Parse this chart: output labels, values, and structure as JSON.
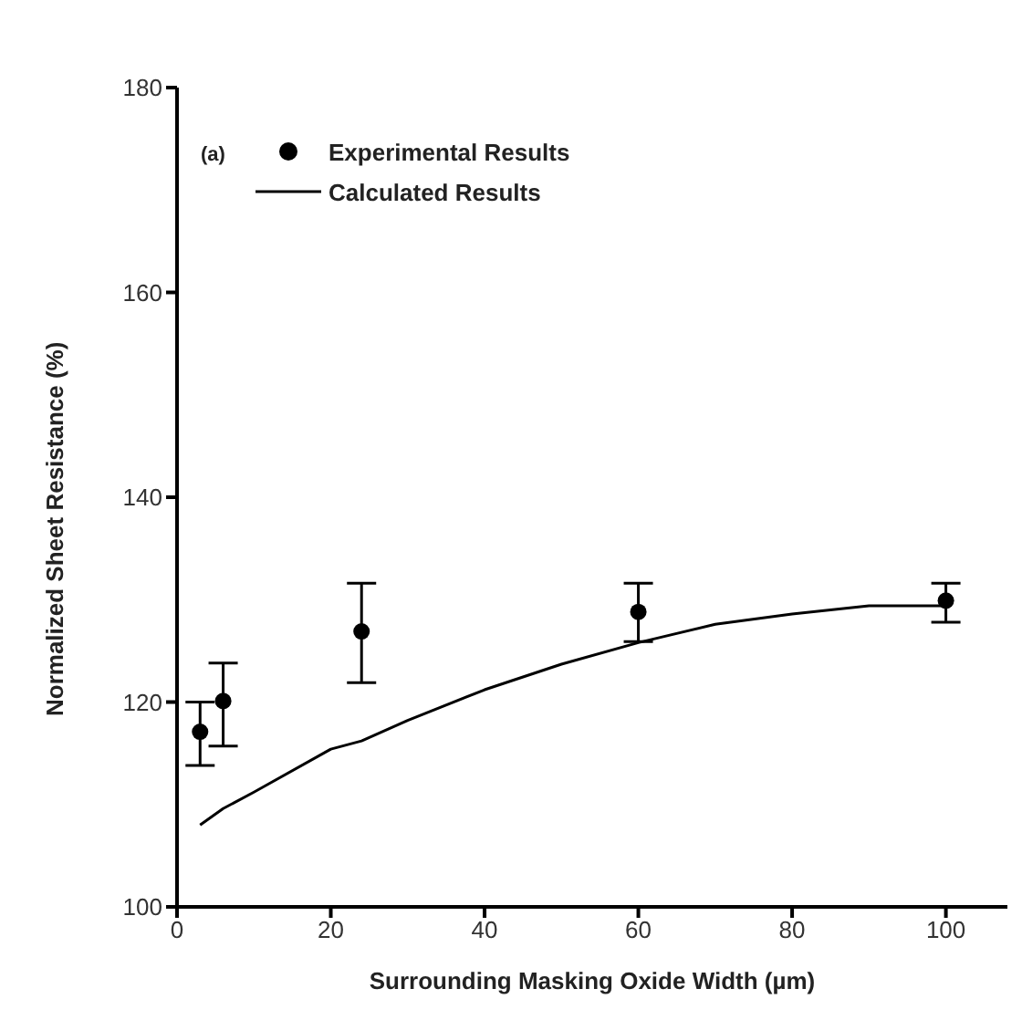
{
  "chart_data": {
    "type": "scatter",
    "xlabel": "Surrounding Masking Oxide Width (µm)",
    "ylabel": "Normalized Sheet Resistance (%)",
    "annotations": [
      "(a)"
    ],
    "xlim": [
      0,
      108
    ],
    "xticks": [
      0,
      20,
      40,
      60,
      80,
      100
    ],
    "ylim": [
      100,
      180
    ],
    "yticks": [
      100,
      120,
      140,
      160,
      180
    ],
    "legend": "top left",
    "grid": false,
    "series": [
      {
        "name": "Experimental Results",
        "type": "scatter",
        "color": "#000000",
        "marker": "circle",
        "x": [
          3,
          6,
          24,
          60,
          100
        ],
        "values": [
          117.1,
          120.1,
          126.9,
          128.8,
          129.9
        ],
        "errors": [
          [
            113.8,
            120
          ],
          [
            115.7,
            123.8
          ],
          [
            121.9,
            131.6
          ],
          [
            125.9,
            131.6
          ],
          [
            127.8,
            131.6
          ]
        ]
      },
      {
        "name": "Calculated Results",
        "type": "line",
        "color": "#000000",
        "marker": "none",
        "line_style": "solid",
        "x": [
          3,
          6,
          10,
          20,
          24,
          30,
          40,
          50,
          60,
          70,
          80,
          90,
          100
        ],
        "values": [
          108,
          109.6,
          111.2,
          115.4,
          116.2,
          118.2,
          121.2,
          123.7,
          125.8,
          127.6,
          128.6,
          129.4,
          129.4
        ]
      }
    ]
  }
}
